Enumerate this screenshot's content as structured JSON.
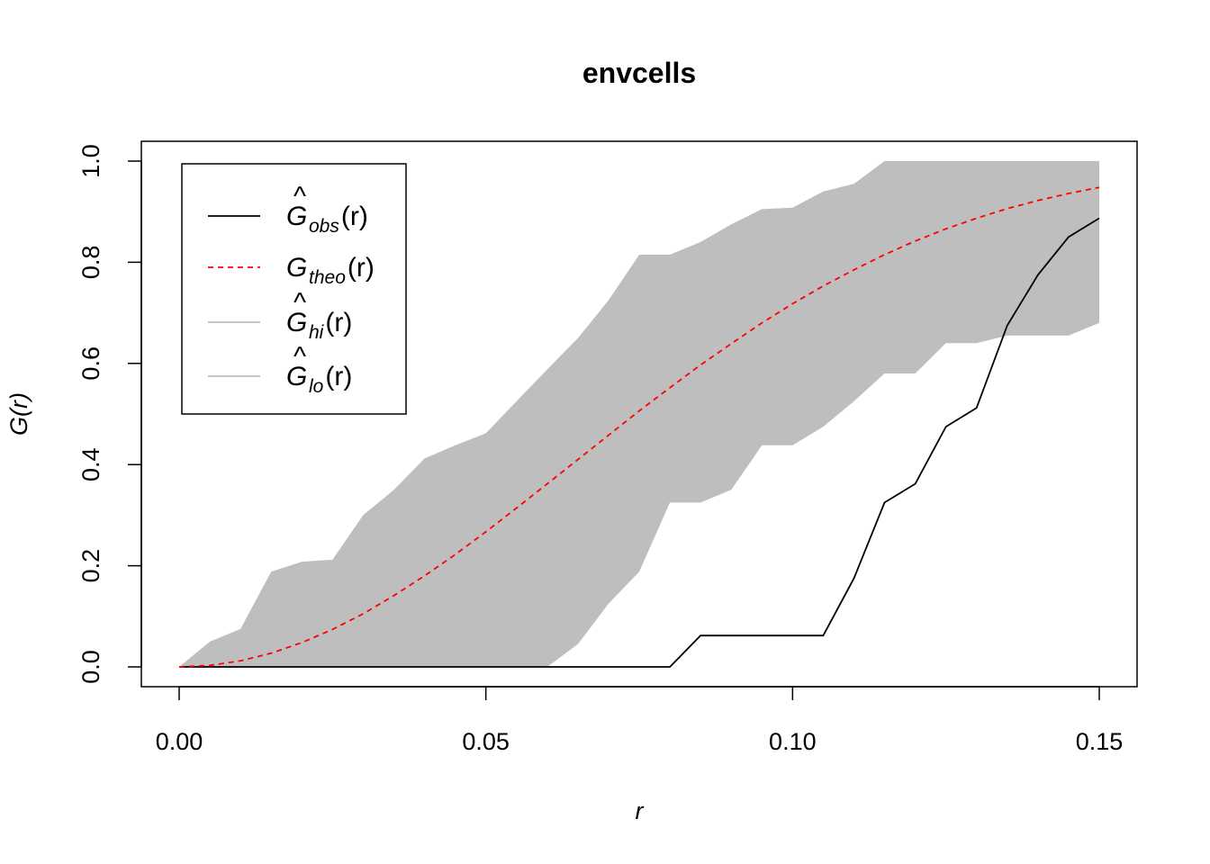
{
  "chart_data": {
    "type": "line",
    "title": "envcells",
    "xlabel": "r",
    "ylabel": "G(r)",
    "xlim": [
      0.0,
      0.15
    ],
    "ylim": [
      0.0,
      1.0
    ],
    "x_ticks": [
      0.0,
      0.05,
      0.1,
      0.15
    ],
    "x_tick_labels": [
      "0.00",
      "0.05",
      "0.10",
      "0.15"
    ],
    "y_ticks": [
      0.0,
      0.2,
      0.4,
      0.6,
      0.8,
      1.0
    ],
    "y_tick_labels": [
      "0.0",
      "0.2",
      "0.4",
      "0.6",
      "0.8",
      "1.0"
    ],
    "grid": false,
    "legend_position": "top-left",
    "x": [
      0.0,
      0.005,
      0.01,
      0.015,
      0.02,
      0.025,
      0.03,
      0.035,
      0.04,
      0.045,
      0.05,
      0.055,
      0.06,
      0.065,
      0.07,
      0.075,
      0.08,
      0.085,
      0.09,
      0.095,
      0.1,
      0.105,
      0.11,
      0.115,
      0.12,
      0.125,
      0.13,
      0.135,
      0.14,
      0.145,
      0.15
    ],
    "series": [
      {
        "name": "obs",
        "legend": {
          "base": "G",
          "hat": true,
          "sub": "obs",
          "suffix": "(r)"
        },
        "style": "solid",
        "color": "#000000",
        "values": [
          0,
          0,
          0,
          0,
          0,
          0,
          0,
          0,
          0,
          0,
          0,
          0,
          0,
          0,
          0,
          0,
          0,
          0.062,
          0.062,
          0.062,
          0.062,
          0.062,
          0.175,
          0.325,
          0.362,
          0.475,
          0.512,
          0.675,
          0.775,
          0.85,
          0.887
        ]
      },
      {
        "name": "theo",
        "legend": {
          "base": "G",
          "hat": false,
          "sub": "theo",
          "suffix": "(r)"
        },
        "style": "dashed",
        "color": "#ff0000",
        "values": [
          0,
          0.003,
          0.012,
          0.027,
          0.048,
          0.074,
          0.105,
          0.141,
          0.18,
          0.222,
          0.267,
          0.314,
          0.362,
          0.41,
          0.458,
          0.506,
          0.552,
          0.597,
          0.639,
          0.68,
          0.718,
          0.753,
          0.785,
          0.815,
          0.842,
          0.866,
          0.887,
          0.906,
          0.922,
          0.936,
          0.948
        ]
      },
      {
        "name": "hi",
        "legend": {
          "base": "G",
          "hat": true,
          "sub": "hi",
          "suffix": "(r)"
        },
        "style": "solid",
        "color": "#bebebe",
        "values": [
          0,
          0.05,
          0.075,
          0.188,
          0.208,
          0.212,
          0.3,
          0.35,
          0.412,
          0.438,
          0.462,
          0.525,
          0.588,
          0.65,
          0.725,
          0.815,
          0.815,
          0.84,
          0.875,
          0.905,
          0.908,
          0.94,
          0.955,
          1.0,
          1.0,
          1.0,
          1.0,
          1.0,
          1.0,
          1.0,
          1.0
        ]
      },
      {
        "name": "lo",
        "legend": {
          "base": "G",
          "hat": true,
          "sub": "lo",
          "suffix": "(r)"
        },
        "style": "solid",
        "color": "#bebebe",
        "values": [
          0,
          0,
          0,
          0,
          0,
          0,
          0,
          0,
          0,
          0,
          0,
          0,
          0,
          0.045,
          0.125,
          0.188,
          0.325,
          0.325,
          0.35,
          0.438,
          0.438,
          0.475,
          0.525,
          0.58,
          0.58,
          0.64,
          0.64,
          0.655,
          0.655,
          0.655,
          0.68
        ]
      }
    ],
    "band": {
      "lower": "lo",
      "upper": "hi",
      "fill": "#bebebe"
    }
  }
}
